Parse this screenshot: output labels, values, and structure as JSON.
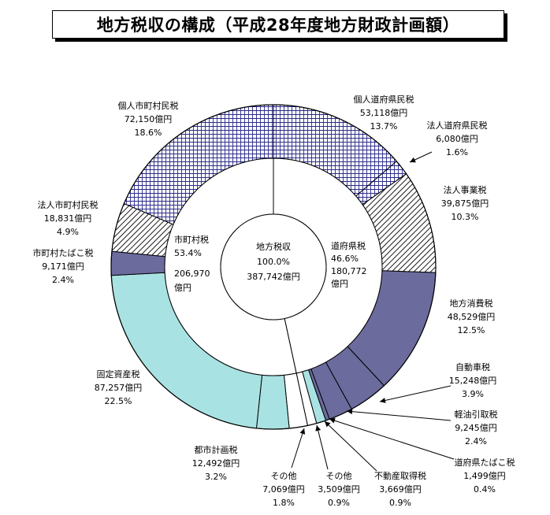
{
  "chart_data": {
    "type": "pie",
    "subtype": "nested-donut",
    "title": "地方税収の構成（平成28年度地方財政計画額）",
    "center": {
      "name": "地方税収",
      "percent": "100.0%",
      "amount": "387,742億円"
    },
    "inner_ring": [
      {
        "name": "道府県税",
        "value": 180772,
        "percent": "46.6%",
        "amount": "180,772",
        "unit": "億円",
        "color": "#ffffff"
      },
      {
        "name": "市町村税",
        "value": 206970,
        "percent": "53.4%",
        "amount": "206,970",
        "unit": "億円",
        "color": "#ffffff"
      }
    ],
    "outer_ring": [
      {
        "name": "個人道府県民税",
        "value": 53118,
        "amount": "53,118億円",
        "percent": "13.7%",
        "pattern": "grid"
      },
      {
        "name": "法人道府県民税",
        "value": 6080,
        "amount": "6,080億円",
        "percent": "1.6%",
        "pattern": "grid"
      },
      {
        "name": "法人事業税",
        "value": 39875,
        "amount": "39,875億円",
        "percent": "10.3%",
        "pattern": "hatch"
      },
      {
        "name": "地方消費税",
        "value": 48529,
        "amount": "48,529億円",
        "percent": "12.5%",
        "color": "#6b6b9e"
      },
      {
        "name": "自動車税",
        "value": 15248,
        "amount": "15,248億円",
        "percent": "3.9%",
        "color": "#6b6b9e"
      },
      {
        "name": "軽油引取税",
        "value": 9245,
        "amount": "9,245億円",
        "percent": "2.4%",
        "color": "#6b6b9e"
      },
      {
        "name": "道府県たばこ税",
        "value": 1499,
        "amount": "1,499億円",
        "percent": "0.4%",
        "color": "#6b6b9e"
      },
      {
        "name": "不動産取得税",
        "value": 3669,
        "amount": "3,669億円",
        "percent": "0.9%",
        "color": "#a9e2e2"
      },
      {
        "name": "その他",
        "value": 3509,
        "amount": "3,509億円",
        "percent": "0.9%",
        "color": "#ffffff"
      },
      {
        "name": "その他",
        "value": 7069,
        "amount": "7,069億円",
        "percent": "1.8%",
        "color": "#ffffff"
      },
      {
        "name": "都市計画税",
        "value": 12492,
        "amount": "12,492億円",
        "percent": "3.2%",
        "color": "#a9e2e2"
      },
      {
        "name": "固定資産税",
        "value": 87257,
        "amount": "87,257億円",
        "percent": "22.5%",
        "color": "#a9e2e2"
      },
      {
        "name": "市町村たばこ税",
        "value": 9171,
        "amount": "9,171億円",
        "percent": "2.4%",
        "color": "#6b6b9e"
      },
      {
        "name": "法人市町村民税",
        "value": 18831,
        "amount": "18,831億円",
        "percent": "4.9%",
        "pattern": "hatch"
      },
      {
        "name": "個人市町村民税",
        "value": 72150,
        "amount": "72,150億円",
        "percent": "18.6%",
        "pattern": "grid"
      }
    ]
  }
}
